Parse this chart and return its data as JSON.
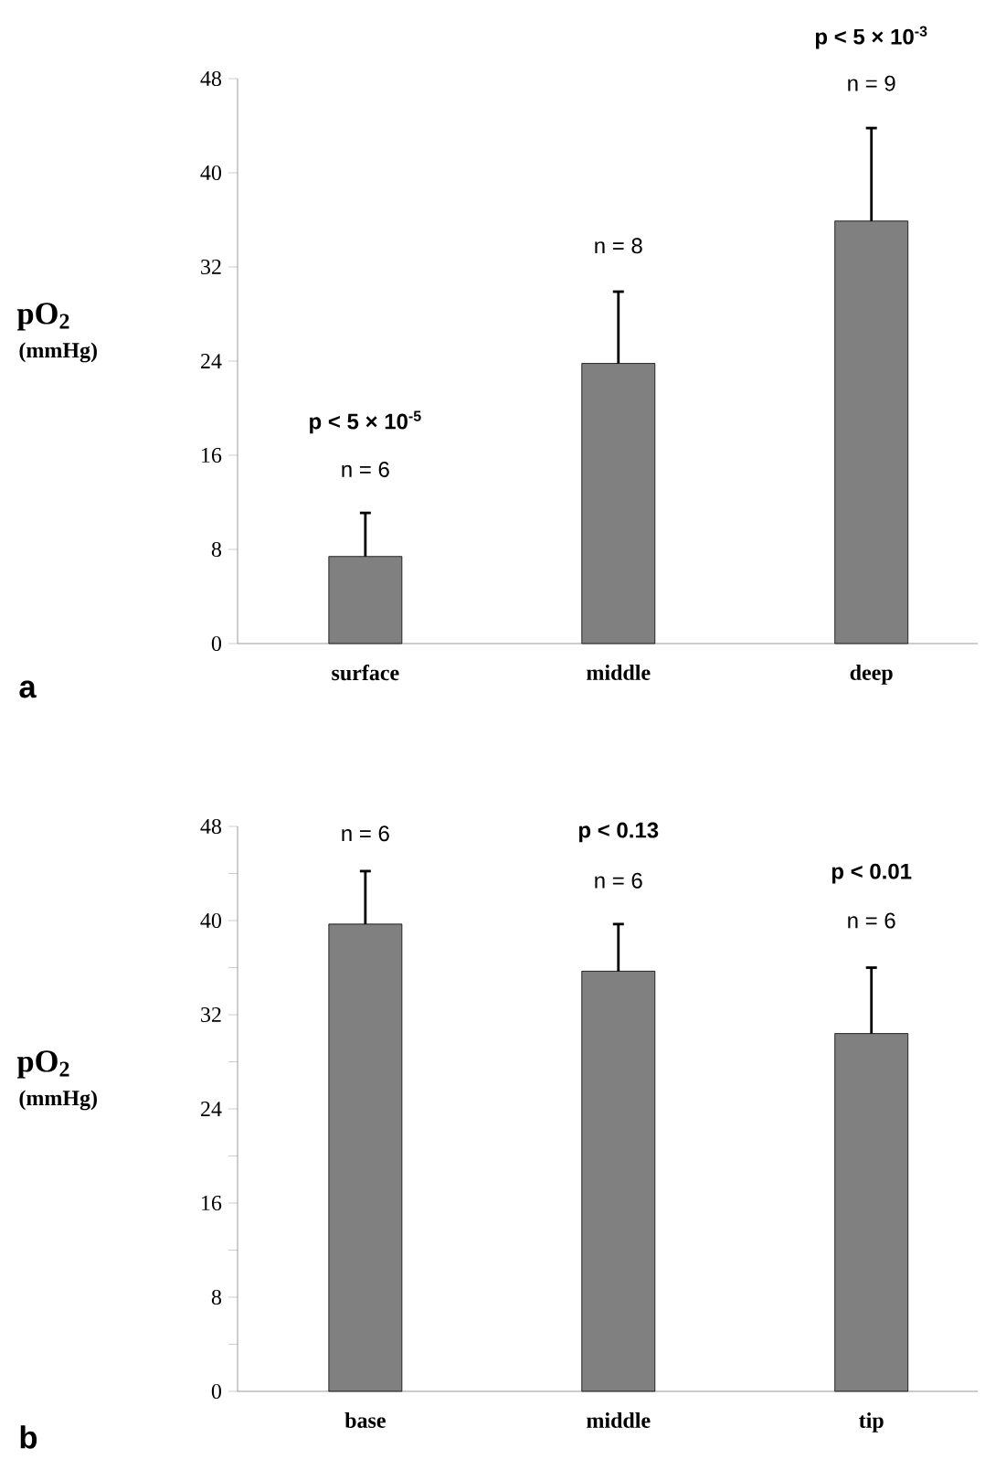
{
  "chart_data": [
    {
      "type": "bar",
      "categories": [
        "surface",
        "middle",
        "deep"
      ],
      "values": [
        7.4,
        23.8,
        35.9
      ],
      "color": "#808080",
      "errors": [
        [
          7.4,
          11.1
        ],
        [
          23.8,
          29.9
        ],
        [
          35.9,
          43.8
        ]
      ],
      "ylabel": "pO$_{2}$",
      "ylim": [
        0,
        48
      ],
      "yticks": [
        0,
        8,
        16,
        24,
        32,
        40,
        48
      ],
      "annotations": [
        "(mmHg)",
        "a",
        "p < 5 × 10$^{-5}$",
        "n = 6",
        "n = 8",
        "p < 5 × 10$^{-3}$",
        "n = 9"
      ]
    },
    {
      "type": "bar",
      "categories": [
        "base",
        "middle",
        "tip"
      ],
      "values": [
        39.7,
        35.7,
        30.4
      ],
      "color": "#808080",
      "errors": [
        [
          39.7,
          44.2
        ],
        [
          35.7,
          39.7
        ],
        [
          30.4,
          36.0
        ]
      ],
      "ylabel": "pO$_{2}$",
      "ylim": [
        0,
        48
      ],
      "yticks": [
        0,
        {
          "value": 4,
          "label": null
        },
        8,
        {
          "value": 12,
          "label": null
        },
        16,
        {
          "value": 20,
          "label": null
        },
        24,
        {
          "value": 28,
          "label": null
        },
        32,
        {
          "value": 36,
          "label": null
        },
        40,
        {
          "value": 44,
          "label": null
        },
        48
      ],
      "annotations": [
        "(mmHg)",
        "b",
        "n = 6",
        "p < 0.13",
        "n = 6",
        "p < 0.01",
        "n = 6"
      ]
    }
  ]
}
